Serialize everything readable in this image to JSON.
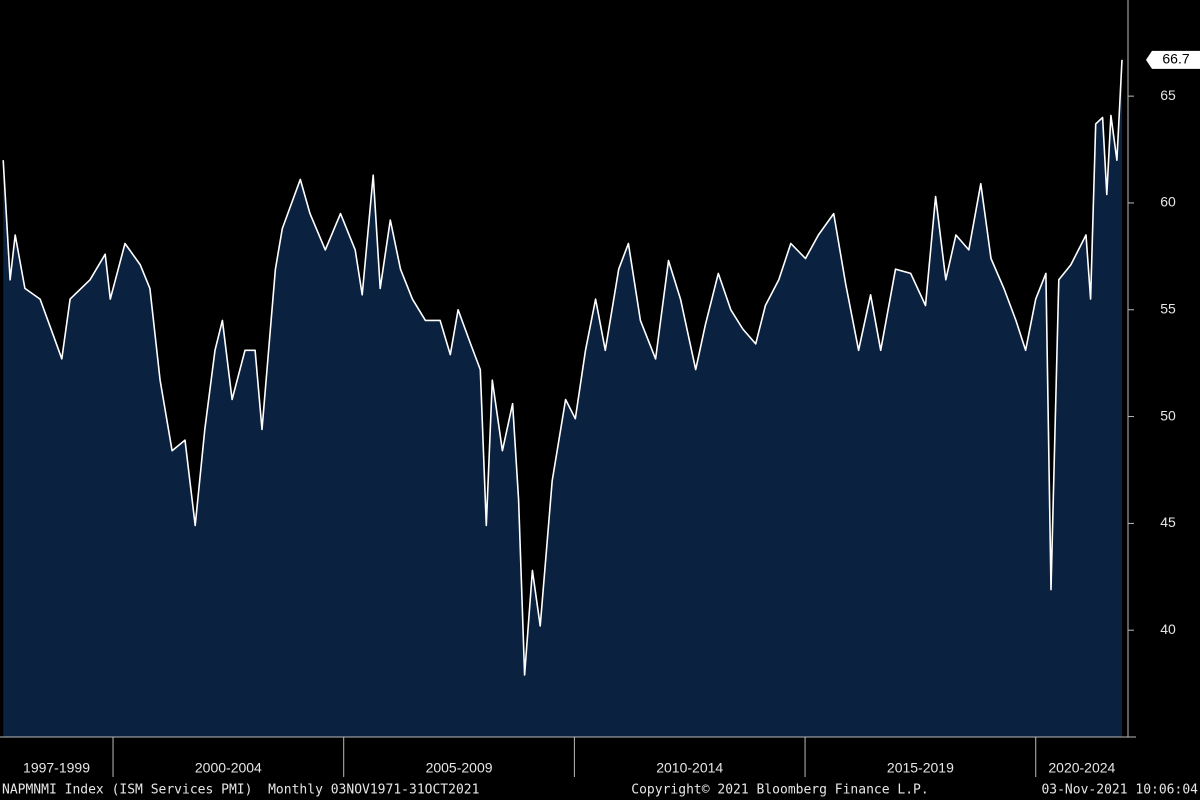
{
  "chart_data": {
    "type": "area-line",
    "line_color": "#ffffff",
    "fill_color": "#0b2140",
    "x": [
      1997.62,
      1997.77,
      1997.88,
      1998.09,
      1998.42,
      1998.74,
      1998.89,
      1999.07,
      1999.5,
      1999.83,
      1999.94,
      2000.26,
      2000.59,
      2000.8,
      2001.02,
      2001.28,
      2001.56,
      2001.78,
      2001.99,
      2002.21,
      2002.37,
      2002.58,
      2002.86,
      2003.08,
      2003.23,
      2003.52,
      2003.67,
      2004.06,
      2004.27,
      2004.6,
      2004.93,
      2005.25,
      2005.4,
      2005.64,
      2005.79,
      2006.01,
      2006.23,
      2006.49,
      2006.77,
      2007.09,
      2007.31,
      2007.48,
      2007.75,
      2007.96,
      2008.09,
      2008.22,
      2008.44,
      2008.66,
      2008.79,
      2008.92,
      2009.09,
      2009.26,
      2009.52,
      2009.81,
      2010.02,
      2010.24,
      2010.46,
      2010.67,
      2010.96,
      2011.17,
      2011.43,
      2011.76,
      2012.04,
      2012.3,
      2012.63,
      2012.84,
      2013.12,
      2013.39,
      2013.65,
      2013.93,
      2014.14,
      2014.43,
      2014.69,
      2015.01,
      2015.29,
      2015.62,
      2015.88,
      2016.16,
      2016.42,
      2016.64,
      2016.96,
      2017.29,
      2017.61,
      2017.83,
      2018.05,
      2018.27,
      2018.55,
      2018.81,
      2019.03,
      2019.31,
      2019.57,
      2019.78,
      2020.0,
      2020.22,
      2020.33,
      2020.5,
      2020.76,
      2021.09,
      2021.19,
      2021.3,
      2021.45,
      2021.54,
      2021.63,
      2021.76,
      2021.87
    ],
    "values": [
      62.0,
      56.4,
      58.5,
      56.0,
      55.5,
      53.6,
      52.7,
      55.5,
      56.4,
      57.6,
      55.5,
      58.1,
      57.1,
      56.0,
      51.7,
      48.4,
      48.9,
      44.9,
      49.4,
      53.1,
      54.5,
      50.8,
      53.1,
      53.1,
      49.4,
      56.9,
      58.8,
      61.1,
      59.5,
      57.8,
      59.5,
      57.8,
      55.7,
      61.3,
      56.0,
      59.2,
      56.9,
      55.5,
      54.5,
      54.5,
      52.9,
      55.0,
      53.4,
      52.2,
      44.9,
      51.7,
      48.4,
      50.6,
      46.1,
      37.9,
      42.8,
      40.2,
      47.0,
      50.8,
      49.9,
      53.1,
      55.5,
      53.1,
      56.9,
      58.1,
      54.5,
      52.7,
      57.3,
      55.5,
      52.2,
      54.3,
      56.7,
      55.0,
      54.1,
      53.4,
      55.2,
      56.4,
      58.1,
      57.4,
      58.5,
      59.5,
      56.2,
      53.1,
      55.7,
      53.1,
      56.9,
      56.7,
      55.2,
      60.3,
      56.4,
      58.5,
      57.8,
      60.9,
      57.4,
      56.0,
      54.5,
      53.1,
      55.5,
      56.7,
      41.9,
      56.4,
      57.1,
      58.5,
      55.5,
      63.7,
      64.0,
      60.4,
      64.1,
      62.0,
      66.7
    ],
    "xlim": [
      1997.55,
      2022.0
    ],
    "ylim": [
      35,
      69.5
    ],
    "yticks": [
      40,
      45,
      50,
      55,
      60,
      65
    ],
    "xbands": [
      {
        "value": [
          1997.55,
          2000
        ],
        "label": "1997-1999"
      },
      {
        "value": [
          2000,
          2005
        ],
        "label": "2000-2004"
      },
      {
        "value": [
          2005,
          2010
        ],
        "label": "2005-2009"
      },
      {
        "value": [
          2010,
          2015
        ],
        "label": "2010-2014"
      },
      {
        "value": [
          2015,
          2020
        ],
        "label": "2015-2019"
      },
      {
        "value": [
          2020,
          2022.0
        ],
        "label": "2020-2024"
      }
    ]
  },
  "footer": {
    "left": "NAPMNMI Index (ISM Services PMI)  Monthly 03NOV1971-31OCT2021",
    "center": "Copyright© 2021 Bloomberg Finance L.P.",
    "right": "03-Nov-2021 10:06:04"
  }
}
